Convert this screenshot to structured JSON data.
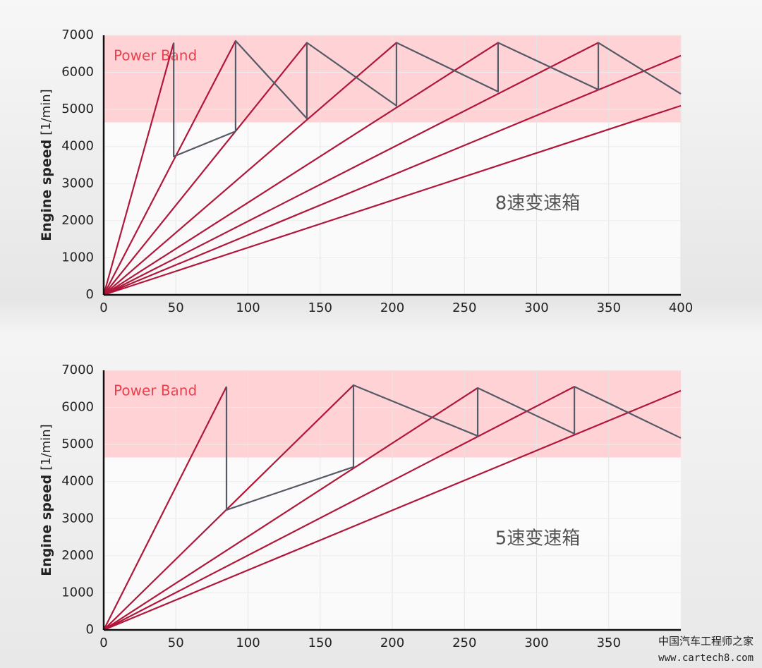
{
  "chart_data": [
    {
      "type": "line",
      "y_label": "Engine speed",
      "y_unit": "[1/min]",
      "annotation": "8速变速箱",
      "band": {
        "label": "Power Band",
        "range": [
          4650,
          7000
        ],
        "color": "#ffd3d6"
      },
      "xlim": [
        0,
        400
      ],
      "xticks": [
        0,
        50,
        100,
        150,
        200,
        250,
        300,
        350,
        400
      ],
      "ylim": [
        0,
        7000
      ],
      "yticks": [
        0,
        1000,
        2000,
        3000,
        4000,
        5000,
        6000,
        7000
      ],
      "grid": true,
      "series": [
        {
          "color": "#b0173a",
          "x": [
            0,
            48.5
          ],
          "values": [
            0,
            6800
          ]
        },
        {
          "color": "#b0173a",
          "x": [
            0,
            91.4
          ],
          "values": [
            0,
            6850
          ]
        },
        {
          "color": "#b0173a",
          "x": [
            0,
            140.8
          ],
          "values": [
            0,
            6800
          ]
        },
        {
          "color": "#b0173a",
          "x": [
            0,
            202.9
          ],
          "values": [
            0,
            6800
          ]
        },
        {
          "color": "#b0173a",
          "x": [
            0,
            273.3
          ],
          "values": [
            0,
            6800
          ]
        },
        {
          "color": "#b0173a",
          "x": [
            0,
            342.8
          ],
          "values": [
            0,
            6800
          ]
        },
        {
          "color": "#b0173a",
          "x": [
            0,
            400
          ],
          "values": [
            0,
            6450
          ]
        },
        {
          "color": "#b0173a",
          "x": [
            0,
            400
          ],
          "values": [
            0,
            5100
          ]
        },
        {
          "color": "#555a66",
          "x": [
            48.5,
            48.5,
            91.4,
            91.4,
            140.8,
            140.8,
            202.9,
            202.9,
            273.3,
            273.3,
            342.8,
            342.8,
            400
          ],
          "values": [
            6800,
            3730,
            4410,
            6850,
            4755,
            6800,
            5100,
            6800,
            5480,
            6800,
            5535,
            6800,
            5420
          ]
        }
      ]
    },
    {
      "type": "line",
      "y_label": "Engine speed",
      "y_unit": "[1/min]",
      "annotation": "5速变速箱",
      "band": {
        "label": "Power Band",
        "range": [
          4650,
          7000
        ],
        "color": "#ffd3d6"
      },
      "xlim": [
        0,
        400
      ],
      "xticks": [
        0,
        50,
        100,
        150,
        200,
        250,
        300,
        350
      ],
      "ylim": [
        0,
        7000
      ],
      "yticks": [
        0,
        1000,
        2000,
        3000,
        4000,
        5000,
        6000,
        7000
      ],
      "grid": true,
      "series": [
        {
          "color": "#b0173a",
          "x": [
            0,
            85.1
          ],
          "values": [
            0,
            6560
          ]
        },
        {
          "color": "#b0173a",
          "x": [
            0,
            173.1
          ],
          "values": [
            0,
            6600
          ]
        },
        {
          "color": "#b0173a",
          "x": [
            0,
            259.2
          ],
          "values": [
            0,
            6525
          ]
        },
        {
          "color": "#b0173a",
          "x": [
            0,
            326.2
          ],
          "values": [
            0,
            6560
          ]
        },
        {
          "color": "#b0173a",
          "x": [
            0,
            400
          ],
          "values": [
            0,
            6450
          ]
        },
        {
          "color": "#555a66",
          "x": [
            85.1,
            85.1,
            173.1,
            173.1,
            259.2,
            259.2,
            326.2,
            326.2,
            400
          ],
          "values": [
            6560,
            3235,
            4395,
            6600,
            5230,
            6525,
            5290,
            6560,
            5175
          ]
        }
      ]
    }
  ],
  "watermark": {
    "title": "中国汽车工程师之家",
    "url": "www.cartech8.com"
  }
}
